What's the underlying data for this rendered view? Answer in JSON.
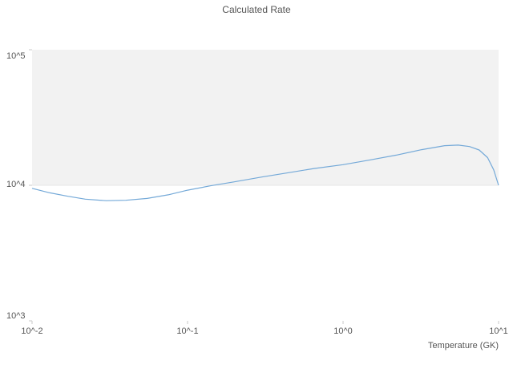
{
  "chart_data": {
    "type": "line",
    "title": "Calculated Rate",
    "xlabel": "Temperature (GK)",
    "ylabel": "",
    "xscale": "log",
    "yscale": "log",
    "xlim": [
      0.01,
      10
    ],
    "ylim": [
      1000,
      100000
    ],
    "grid": "off",
    "legend": "none",
    "band": {
      "from": 10000,
      "to": 100000,
      "color": "#f2f2f2",
      "edge_color": "#e7e7e7"
    },
    "x_ticks": [
      {
        "value": 0.01,
        "label": "10^-2"
      },
      {
        "value": 0.1,
        "label": "10^-1"
      },
      {
        "value": 1,
        "label": "10^0"
      },
      {
        "value": 10,
        "label": "10^1"
      }
    ],
    "y_ticks": [
      {
        "value": 1000,
        "label": "10^3"
      },
      {
        "value": 10000,
        "label": "10^4"
      },
      {
        "value": 100000,
        "label": "10^5"
      }
    ],
    "series": [
      {
        "name": "calculated-rate",
        "color": "#74a9d8",
        "x": [
          0.01,
          0.013,
          0.017,
          0.022,
          0.03,
          0.04,
          0.055,
          0.075,
          0.1,
          0.14,
          0.2,
          0.3,
          0.45,
          0.65,
          1.0,
          1.5,
          2.2,
          3.2,
          4.5,
          5.5,
          6.5,
          7.5,
          8.5,
          9.3,
          10
        ],
        "y": [
          9500,
          8800,
          8300,
          7900,
          7700,
          7750,
          8000,
          8500,
          9200,
          9900,
          10600,
          11500,
          12400,
          13300,
          14200,
          15400,
          16700,
          18300,
          19600,
          19800,
          19300,
          18200,
          16000,
          13000,
          10000
        ]
      }
    ]
  }
}
